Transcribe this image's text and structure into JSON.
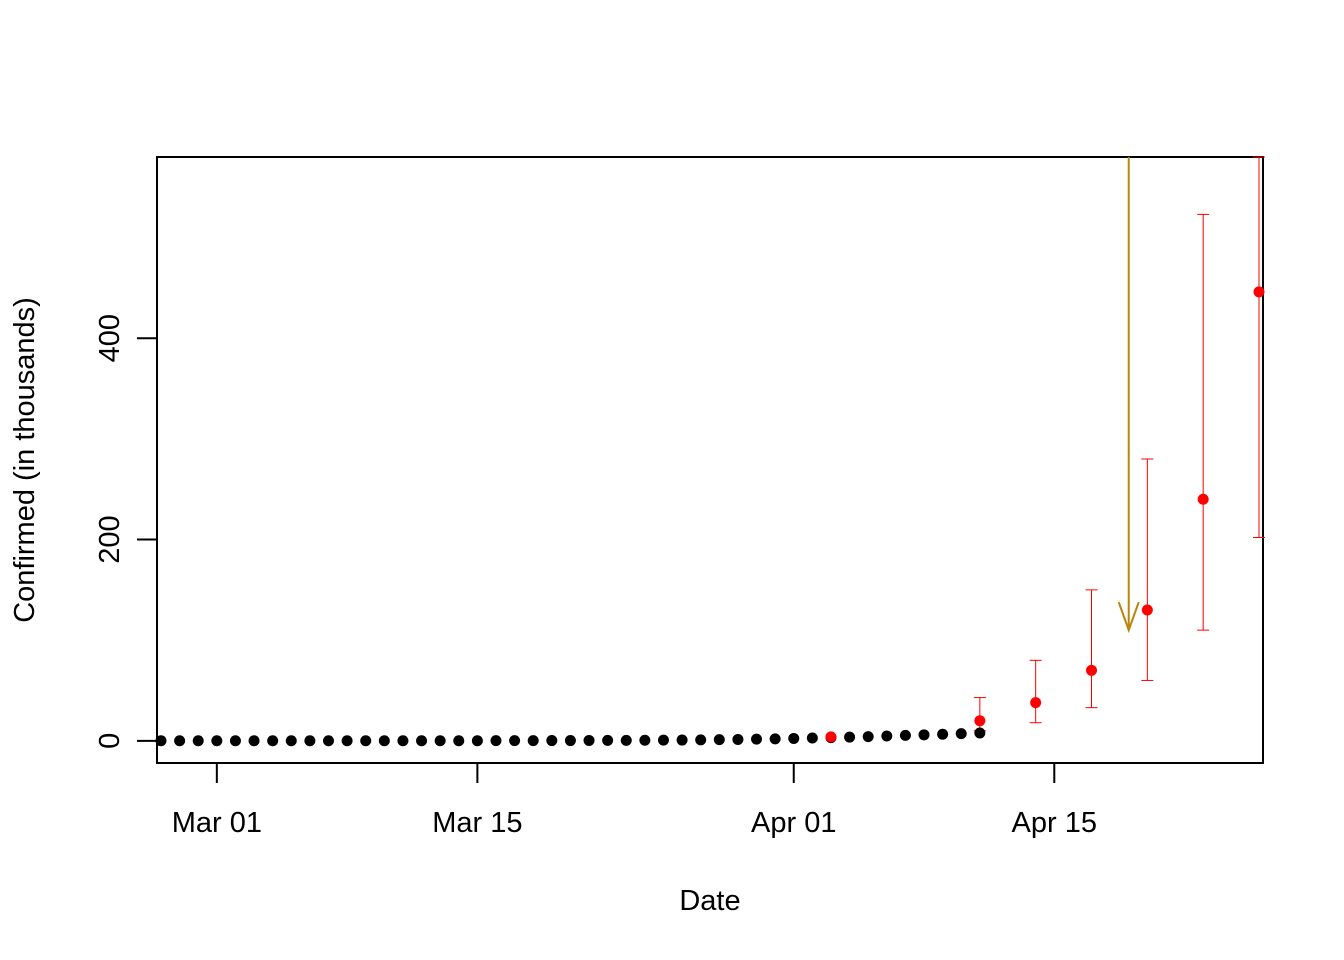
{
  "chart_data": {
    "type": "scatter",
    "title": "",
    "xlabel": "Date",
    "ylabel": "Confirmed (in thousands)",
    "x_range": [
      "2020-02-27",
      "2020-04-26"
    ],
    "ylim": [
      -22,
      580
    ],
    "x_ticks": [
      {
        "date": "2020-03-01",
        "label": "Mar 01"
      },
      {
        "date": "2020-03-15",
        "label": "Mar 15"
      },
      {
        "date": "2020-04-01",
        "label": "Apr 01"
      },
      {
        "date": "2020-04-15",
        "label": "Apr 15"
      }
    ],
    "y_ticks": [
      0,
      200,
      400
    ],
    "grid": false,
    "legend": "none",
    "series": [
      {
        "color": "#000000",
        "points": [
          {
            "x": "2020-02-27",
            "y": 0.1
          },
          {
            "x": "2020-02-28",
            "y": 0.1
          },
          {
            "x": "2020-02-29",
            "y": 0.1
          },
          {
            "x": "2020-03-01",
            "y": 0.1
          },
          {
            "x": "2020-03-02",
            "y": 0.1
          },
          {
            "x": "2020-03-03",
            "y": 0.1
          },
          {
            "x": "2020-03-04",
            "y": 0.1
          },
          {
            "x": "2020-03-05",
            "y": 0.1
          },
          {
            "x": "2020-03-06",
            "y": 0.1
          },
          {
            "x": "2020-03-07",
            "y": 0.1
          },
          {
            "x": "2020-03-08",
            "y": 0.1
          },
          {
            "x": "2020-03-09",
            "y": 0.1
          },
          {
            "x": "2020-03-10",
            "y": 0.1
          },
          {
            "x": "2020-03-11",
            "y": 0.1
          },
          {
            "x": "2020-03-12",
            "y": 0.1
          },
          {
            "x": "2020-03-13",
            "y": 0.1
          },
          {
            "x": "2020-03-14",
            "y": 0.1
          },
          {
            "x": "2020-03-15",
            "y": 0.1
          },
          {
            "x": "2020-03-16",
            "y": 0.2
          },
          {
            "x": "2020-03-17",
            "y": 0.2
          },
          {
            "x": "2020-03-18",
            "y": 0.2
          },
          {
            "x": "2020-03-19",
            "y": 0.3
          },
          {
            "x": "2020-03-20",
            "y": 0.3
          },
          {
            "x": "2020-03-21",
            "y": 0.4
          },
          {
            "x": "2020-03-22",
            "y": 0.5
          },
          {
            "x": "2020-03-23",
            "y": 0.5
          },
          {
            "x": "2020-03-24",
            "y": 0.6
          },
          {
            "x": "2020-03-25",
            "y": 0.7
          },
          {
            "x": "2020-03-26",
            "y": 0.8
          },
          {
            "x": "2020-03-27",
            "y": 1.0
          },
          {
            "x": "2020-03-28",
            "y": 1.2
          },
          {
            "x": "2020-03-29",
            "y": 1.4
          },
          {
            "x": "2020-03-30",
            "y": 1.7
          },
          {
            "x": "2020-03-31",
            "y": 2.0
          },
          {
            "x": "2020-04-01",
            "y": 2.4
          },
          {
            "x": "2020-04-02",
            "y": 2.8
          },
          {
            "x": "2020-04-03",
            "y": 3.2
          },
          {
            "x": "2020-04-04",
            "y": 3.7
          },
          {
            "x": "2020-04-05",
            "y": 4.2
          },
          {
            "x": "2020-04-06",
            "y": 4.8
          },
          {
            "x": "2020-04-07",
            "y": 5.4
          },
          {
            "x": "2020-04-08",
            "y": 6.0
          },
          {
            "x": "2020-04-09",
            "y": 6.6
          },
          {
            "x": "2020-04-10",
            "y": 7.2
          },
          {
            "x": "2020-04-11",
            "y": 7.8
          }
        ]
      },
      {
        "color": "#ff0000",
        "points": [
          {
            "x": "2020-04-03",
            "y": 4,
            "lower": 4,
            "upper": 4
          },
          {
            "x": "2020-04-11",
            "y": 20,
            "lower": 10,
            "upper": 43
          },
          {
            "x": "2020-04-14",
            "y": 38,
            "lower": 18,
            "upper": 80
          },
          {
            "x": "2020-04-17",
            "y": 70,
            "lower": 33,
            "upper": 150
          },
          {
            "x": "2020-04-20",
            "y": 130,
            "lower": 60,
            "upper": 280
          },
          {
            "x": "2020-04-23",
            "y": 240,
            "lower": 110,
            "upper": 523
          },
          {
            "x": "2020-04-26",
            "y": 446,
            "lower": 202,
            "upper": 580
          }
        ]
      }
    ],
    "annotations": [
      {
        "type": "arrow",
        "color": "#b8860b",
        "x": "2020-04-19",
        "y_from": 580,
        "y_to": 110
      }
    ]
  }
}
